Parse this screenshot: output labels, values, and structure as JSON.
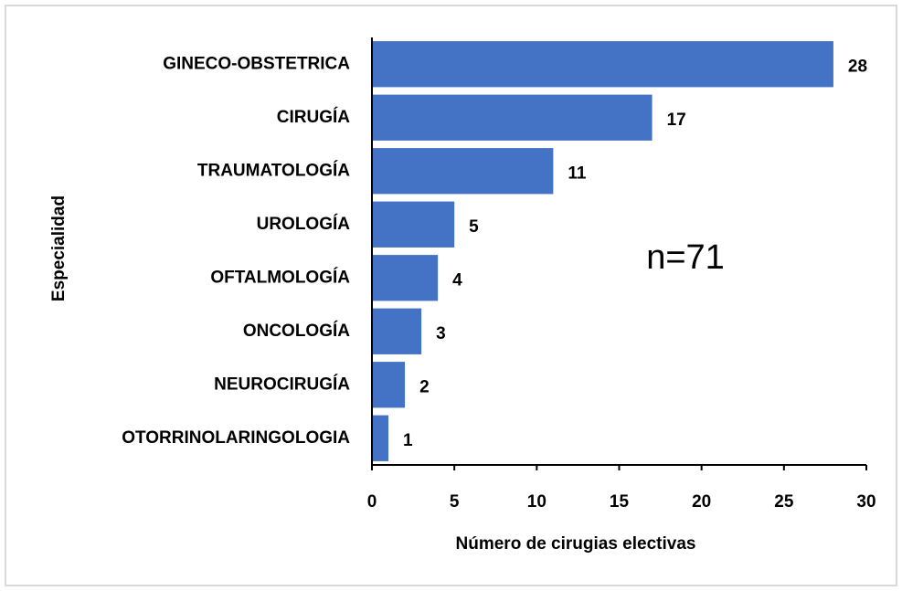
{
  "chart_data": {
    "type": "barh",
    "categories": [
      "GINECO-OBSTETRICA",
      "CIRUGÍA",
      "TRAUMATOLOGÍA",
      "UROLOGÍA",
      "OFTALMOLOGÍA",
      "ONCOLOGÍA",
      "NEUROCIRUGÍA",
      "OTORRINOLARINGOLOGIA"
    ],
    "values": [
      28,
      17,
      11,
      5,
      4,
      3,
      2,
      1
    ],
    "color": "#4472c4",
    "xlim": [
      0,
      30
    ],
    "xticks": [
      0,
      5,
      10,
      15,
      20,
      25,
      30
    ],
    "xlabel": "Número de cirugias electivas",
    "ylabel": "Especialidad",
    "annotation": "n=71"
  }
}
